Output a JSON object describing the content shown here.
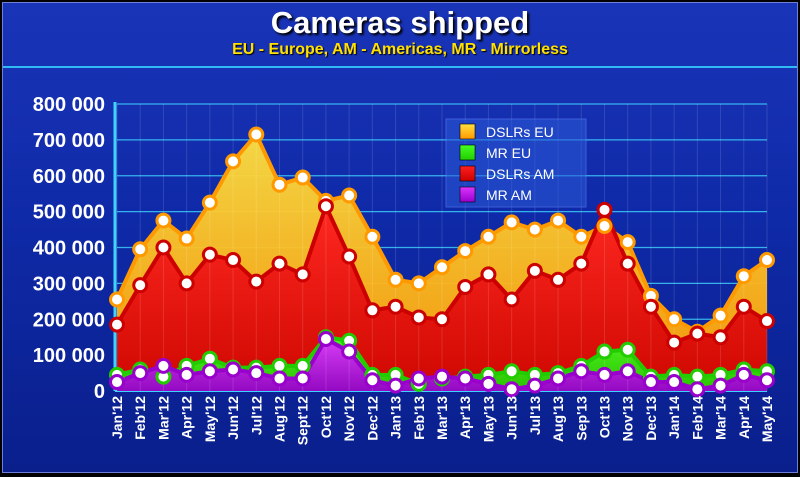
{
  "header": {
    "title": "Cameras shipped",
    "subtitle": "EU - Europe, AM - Americas, MR - Mirrorless"
  },
  "chart_data": {
    "type": "area",
    "title": "Cameras shipped",
    "subtitle": "EU - Europe, AM - Americas, MR - Mirrorless",
    "xlabel": "",
    "ylabel": "",
    "ylim": [
      0,
      800000
    ],
    "yticks": [
      0,
      100000,
      200000,
      300000,
      400000,
      500000,
      600000,
      700000,
      800000
    ],
    "ytick_labels": [
      "0",
      "100 000",
      "200 000",
      "300 000",
      "400 000",
      "500 000",
      "600 000",
      "700 000",
      "800 000"
    ],
    "grid": true,
    "legend_position": "top-center",
    "categories": [
      "Jan'12",
      "Feb'12",
      "Mar'12",
      "Apr'12",
      "May'12",
      "Jun'12",
      "Jul'12",
      "Aug'12",
      "Sept'12",
      "Oct'12",
      "Nov'12",
      "Dec'12",
      "Jan'13",
      "Feb'13",
      "Mar'13",
      "Apr'13",
      "May'13",
      "Jun'13",
      "Jul'13",
      "Aug'13",
      "Sep'13",
      "Oct'13",
      "Nov'13",
      "Dec'13",
      "Jan'14",
      "Feb'14",
      "Mar'14",
      "Apr'14",
      "May'14"
    ],
    "series": [
      {
        "name": "DSLRs EU",
        "color": "#ff9900",
        "fill_top": "#ffe040",
        "values": [
          255000,
          395000,
          475000,
          425000,
          525000,
          640000,
          715000,
          575000,
          595000,
          530000,
          545000,
          430000,
          310000,
          300000,
          345000,
          390000,
          430000,
          470000,
          450000,
          475000,
          430000,
          460000,
          415000,
          265000,
          200000,
          165000,
          210000,
          320000,
          365000
        ]
      },
      {
        "name": "MR EU",
        "color": "#22cc00",
        "fill_top": "#44ff22",
        "values": [
          45000,
          60000,
          40000,
          70000,
          90000,
          65000,
          65000,
          70000,
          70000,
          150000,
          140000,
          45000,
          45000,
          20000,
          35000,
          40000,
          45000,
          55000,
          45000,
          50000,
          70000,
          110000,
          115000,
          40000,
          45000,
          40000,
          45000,
          60000,
          55000
        ]
      },
      {
        "name": "DSLRs AM",
        "color": "#cc0000",
        "fill_top": "#ff2020",
        "values": [
          185000,
          295000,
          400000,
          300000,
          380000,
          365000,
          305000,
          355000,
          325000,
          515000,
          375000,
          225000,
          235000,
          205000,
          200000,
          290000,
          325000,
          255000,
          335000,
          310000,
          355000,
          505000,
          355000,
          235000,
          135000,
          160000,
          150000,
          235000,
          195000
        ]
      },
      {
        "name": "MR AM",
        "color": "#9900cc",
        "fill_top": "#dd33ff",
        "values": [
          25000,
          50000,
          70000,
          45000,
          55000,
          60000,
          50000,
          35000,
          35000,
          145000,
          110000,
          30000,
          15000,
          35000,
          40000,
          35000,
          20000,
          5000,
          15000,
          35000,
          55000,
          45000,
          55000,
          25000,
          25000,
          5000,
          15000,
          45000,
          30000
        ]
      }
    ]
  }
}
